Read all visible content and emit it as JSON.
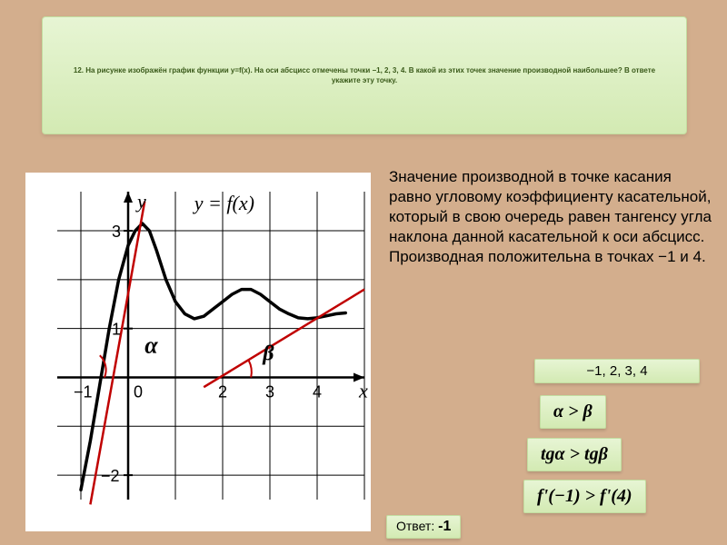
{
  "question": {
    "text": "12. На рисунке изображён график функции y=f(x). На оси абсцисс отмечены точки −1, 2, 3, 4. В какой из этих точек значение производной наибольшее? В ответе укажите эту точку."
  },
  "explanation": {
    "text": "Значение производной в точке касания равно угловому коэффициенту касательной, который в свою очередь равен тангенсу угла наклона данной касательной к оси абсцисс. Производная положительна в точках −1 и 4."
  },
  "badges": {
    "points": "−1,  2,  3,  4",
    "alpha_gt_beta": "α > β",
    "tan": "tgα > tgβ",
    "f_compare": "f'(−1) > f'(4)"
  },
  "answer": {
    "label": "Ответ:",
    "value": "-1"
  },
  "graph": {
    "y_label": "y",
    "x_label": "x",
    "function_label": "y = f(x)",
    "alpha": "α",
    "beta": "β",
    "x_ticks": [
      "−1",
      "0",
      "2",
      "3",
      "4"
    ],
    "y_ticks": [
      "3",
      "1",
      "−2"
    ],
    "grid_color": "#000000",
    "axis_color": "#000000",
    "curve_color": "#000000",
    "tangent_color": "#c00000",
    "arc_color": "#c00000",
    "x_range": [
      -1.5,
      5.0
    ],
    "y_range": [
      -2.5,
      3.8
    ],
    "curve_points": [
      [
        -1.0,
        -2.3
      ],
      [
        -0.8,
        -1.3
      ],
      [
        -0.6,
        -0.15
      ],
      [
        -0.4,
        1.0
      ],
      [
        -0.2,
        2.0
      ],
      [
        0.0,
        2.7
      ],
      [
        0.15,
        3.0
      ],
      [
        0.3,
        3.15
      ],
      [
        0.45,
        3.0
      ],
      [
        0.6,
        2.6
      ],
      [
        0.8,
        2.0
      ],
      [
        1.0,
        1.55
      ],
      [
        1.2,
        1.3
      ],
      [
        1.4,
        1.2
      ],
      [
        1.6,
        1.25
      ],
      [
        1.8,
        1.4
      ],
      [
        2.0,
        1.55
      ],
      [
        2.2,
        1.7
      ],
      [
        2.4,
        1.8
      ],
      [
        2.6,
        1.8
      ],
      [
        2.8,
        1.7
      ],
      [
        3.0,
        1.55
      ],
      [
        3.2,
        1.4
      ],
      [
        3.4,
        1.3
      ],
      [
        3.6,
        1.22
      ],
      [
        3.8,
        1.2
      ],
      [
        4.0,
        1.22
      ],
      [
        4.2,
        1.26
      ],
      [
        4.4,
        1.3
      ],
      [
        4.6,
        1.32
      ]
    ],
    "tangent_alpha": {
      "p1": [
        -0.8,
        -2.6
      ],
      "p2": [
        0.35,
        3.6
      ]
    },
    "tangent_beta": {
      "p1": [
        1.6,
        -0.2
      ],
      "p2": [
        5.0,
        1.8
      ]
    },
    "alpha_pos": [
      0.35,
      0.5
    ],
    "beta_pos": [
      2.85,
      0.35
    ]
  }
}
